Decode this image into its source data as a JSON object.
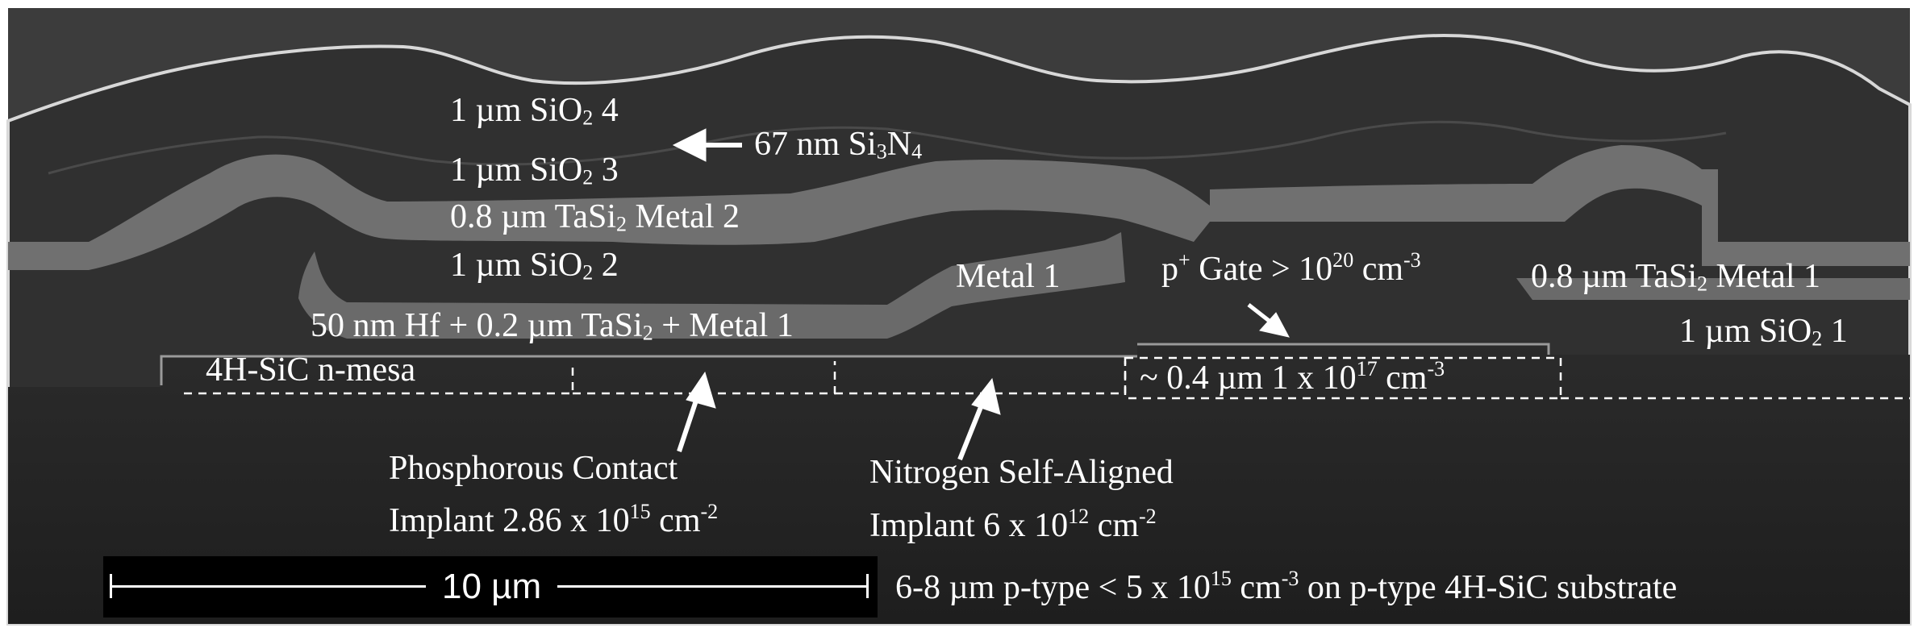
{
  "micrograph": {
    "colors": {
      "background": "#2c2c2c",
      "substrate": "#262626",
      "oxide": "#3a3a3a",
      "metal": "#6e6e6e",
      "label": "#ffffff"
    },
    "labels": {
      "sio2_4": {
        "pre": "1 µm SiO",
        "sub": "2",
        "post": " 4"
      },
      "si3n4": {
        "pre": "67 nm Si",
        "sub1": "3",
        "mid": "N",
        "sub2": "4"
      },
      "sio2_3": {
        "pre": "1 µm SiO",
        "sub": "2",
        "post": " 3"
      },
      "metal2": {
        "pre": "0.8 µm TaSi",
        "sub": "2",
        "post": " Metal 2"
      },
      "sio2_2": {
        "pre": "1 µm SiO",
        "sub": "2",
        "post": " 2"
      },
      "metal1": "Metal 1",
      "gate": {
        "pre": "p",
        "sup1": "+",
        "mid": " Gate > 10",
        "sup2": "20",
        "post": " cm",
        "sup3": "-3"
      },
      "metal1_right": {
        "pre": "0.8 µm TaSi",
        "sub": "2",
        "post": " Metal 1"
      },
      "sio2_1": {
        "pre": "1 µm SiO",
        "sub": "2",
        "post": " 1"
      },
      "hf_stack": {
        "pre": "50 nm Hf + 0.2 µm TaSi",
        "sub": "2",
        "post": " + Metal 1"
      },
      "mesa": "4H-SiC n-mesa",
      "channel": {
        "pre": "~ 0.4 µm 1 x 10",
        "sup": "17",
        "post": " cm",
        "sup2": "-3"
      },
      "phos_line1": "Phosphorous Contact",
      "phos_line2": {
        "pre": "Implant 2.86 x 10",
        "sup": "15",
        "post": " cm",
        "sup2": "-2"
      },
      "nitro_line1": "Nitrogen Self-Aligned",
      "nitro_line2": {
        "pre": "Implant 6 x 10",
        "sup": "12",
        "post": " cm",
        "sup2": "-2"
      },
      "substrate": {
        "pre": "6-8 µm p-type < 5 x 10",
        "sup": "15",
        "post": " cm",
        "sup2": "-3",
        "tail": " on p-type 4H-SiC substrate"
      }
    },
    "scale_bar": {
      "label": "10 µm"
    }
  }
}
